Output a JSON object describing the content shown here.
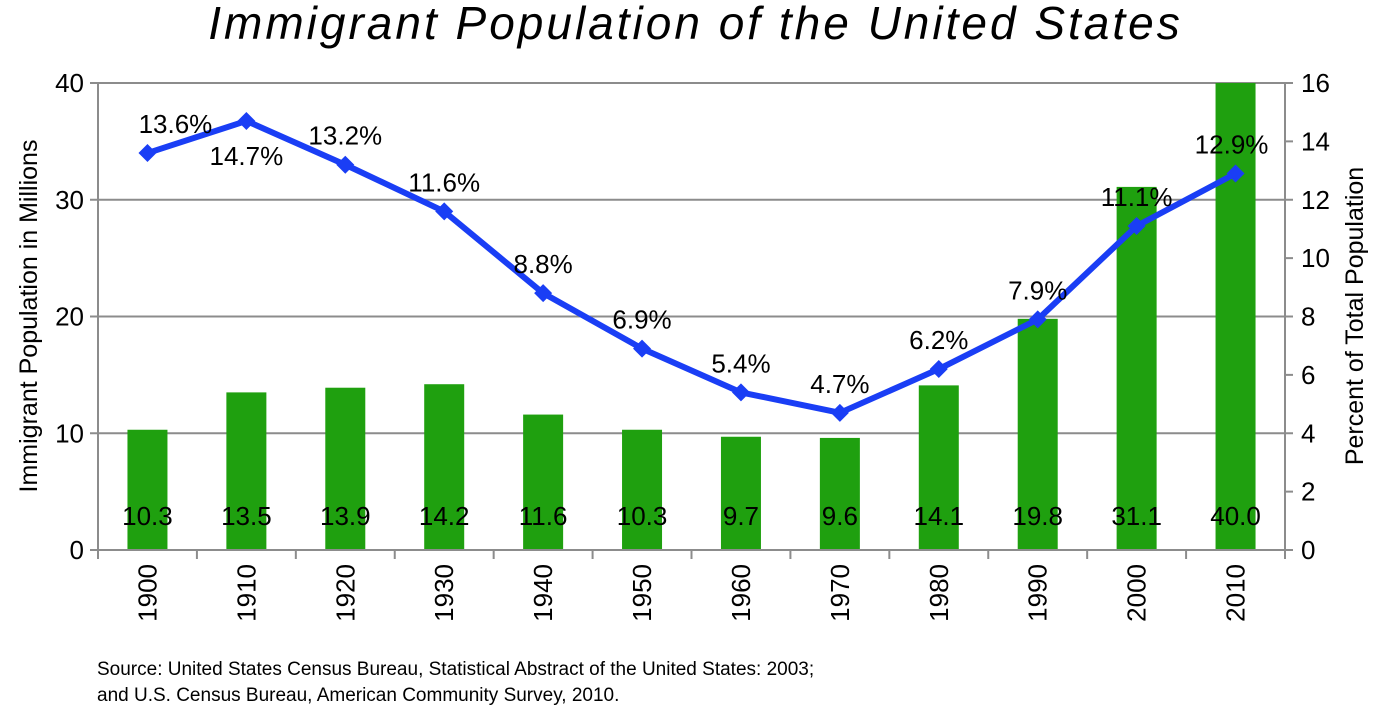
{
  "chart_data": {
    "type": "bar",
    "title": "Immigrant Population of the United States",
    "categories": [
      "1900",
      "1910",
      "1920",
      "1930",
      "1940",
      "1950",
      "1960",
      "1970",
      "1980",
      "1990",
      "2000",
      "2010"
    ],
    "series": [
      {
        "name": "Immigrant Population in Millions",
        "type": "bar",
        "axis": "left",
        "color": "#1fa00f",
        "values": [
          10.3,
          13.5,
          13.9,
          14.2,
          11.6,
          10.3,
          9.7,
          9.6,
          14.1,
          19.8,
          31.1,
          40.0
        ],
        "labels": [
          "10.3",
          "13.5",
          "13.9",
          "14.2",
          "11.6",
          "10.3",
          "9.7",
          "9.6",
          "14.1",
          "19.8",
          "31.1",
          "40.0"
        ]
      },
      {
        "name": "Percent of Total Population",
        "type": "line",
        "axis": "right",
        "color": "#1a3ef5",
        "values": [
          13.6,
          14.7,
          13.2,
          11.6,
          8.8,
          6.9,
          5.4,
          4.7,
          6.2,
          7.9,
          11.1,
          12.9
        ],
        "labels": [
          "13.6%",
          "14.7%",
          "13.2%",
          "11.6%",
          "8.8%",
          "6.9%",
          "5.4%",
          "4.7%",
          "6.2%",
          "7.9%",
          "11.1%",
          "12.9%"
        ]
      }
    ],
    "ylabel": "Immigrant Population in Millions",
    "ylabel_right": "Percent of Total Population",
    "ylim": [
      0,
      40
    ],
    "ylim_right": [
      0,
      16
    ],
    "yticks": [
      "0",
      "10",
      "20",
      "30",
      "40"
    ],
    "yticks_right": [
      "0",
      "2",
      "4",
      "6",
      "8",
      "10",
      "12",
      "14",
      "16"
    ],
    "grid": true,
    "legend": "none"
  },
  "source": {
    "line1": "Source: United States Census Bureau, Statistical Abstract of the United States: 2003;",
    "line2": "and U.S. Census Bureau, American Community Survey, 2010."
  }
}
